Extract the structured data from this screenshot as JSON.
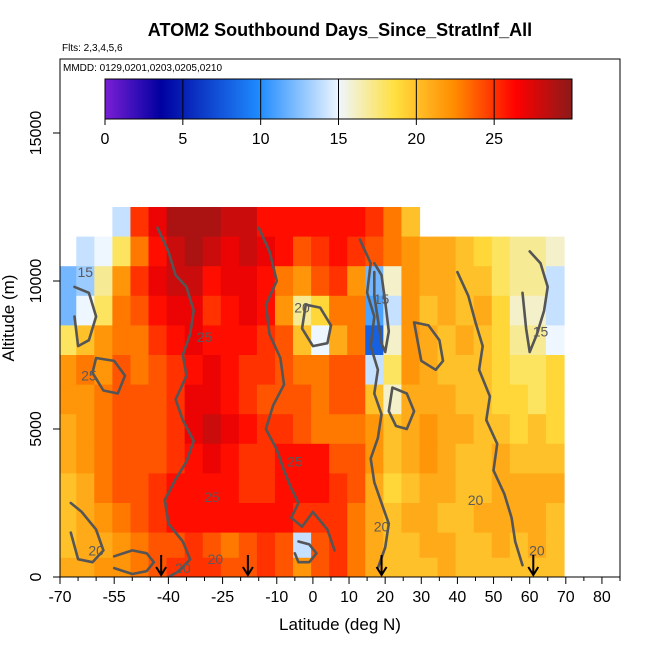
{
  "chart_data": {
    "type": "heatmap",
    "title": "ATOM2 Southbound Days_Since_StratInf_All",
    "subtitle_flights": "Flts: 2,3,4,5,6",
    "subtitle_dates": "MMDD: 0129,0201,0203,0205,0210",
    "xlabel": "Latitude (deg N)",
    "ylabel": "Altitude (m)",
    "xlim": [
      -70,
      85
    ],
    "ylim": [
      0,
      17500
    ],
    "x_ticks": [
      -70,
      -55,
      -40,
      -25,
      -10,
      0,
      10,
      20,
      30,
      40,
      50,
      60,
      70,
      80
    ],
    "y_ticks": [
      0,
      5000,
      10000,
      15000
    ],
    "colorbar": {
      "range": [
        0,
        30
      ],
      "ticks": [
        0,
        5,
        10,
        15,
        20,
        25
      ],
      "colors": [
        "#7a1fd6",
        "#0000a0",
        "#1e8bff",
        "#eef6ff",
        "#ffe040",
        "#ff8a00",
        "#ff0000",
        "#8b1a1a"
      ]
    },
    "contour_levels": [
      15,
      20,
      25
    ],
    "contour_color": "#555555",
    "grid": false,
    "arrow_latitudes": [
      -42,
      -18,
      19,
      61
    ],
    "heat_rows": [
      {
        "alt": 12000,
        "lat": [
          -53,
          -48,
          -43,
          -38,
          -33,
          -28,
          -23,
          -18,
          -13,
          -8,
          -3,
          2,
          7,
          12,
          17,
          22,
          27
        ],
        "value": [
          14,
          25,
          27,
          29,
          29,
          29,
          28,
          28,
          26,
          26,
          26,
          26,
          26,
          26,
          25,
          23,
          20
        ]
      },
      {
        "alt": 11000,
        "lat": [
          -63,
          -58,
          -53,
          -48,
          -43,
          -38,
          -33,
          -28,
          -23,
          -18,
          -13,
          -8,
          -3,
          2,
          7,
          12,
          17,
          22,
          27,
          32,
          37,
          42,
          47,
          52,
          57,
          62,
          67
        ],
        "value": [
          14,
          15,
          18,
          23,
          26,
          28,
          29,
          28,
          27,
          28,
          27,
          26,
          24,
          25,
          26,
          25,
          24,
          23,
          22,
          21,
          21,
          20,
          19,
          18,
          17,
          17,
          16
        ]
      },
      {
        "alt": 10000,
        "lat": [
          -68,
          -63,
          -58,
          -53,
          -48,
          -43,
          -38,
          -33,
          -28,
          -23,
          -18,
          -13,
          -8,
          -3,
          2,
          7,
          12,
          17,
          22,
          27,
          32,
          37,
          42,
          47,
          52,
          57,
          62,
          67
        ],
        "value": [
          12,
          13,
          17,
          22,
          25,
          27,
          28,
          28,
          26,
          27,
          27,
          26,
          23,
          22,
          24,
          25,
          22,
          12,
          16,
          22,
          21,
          21,
          20,
          20,
          18,
          17,
          17,
          14
        ]
      },
      {
        "alt": 9000,
        "lat": [
          -68,
          -63,
          -58,
          -53,
          -48,
          -43,
          -38,
          -33,
          -28,
          -23,
          -18,
          -13,
          -8,
          -3,
          2,
          7,
          12,
          17,
          22,
          27,
          32,
          37,
          42,
          47,
          52,
          57,
          62,
          67
        ],
        "value": [
          12,
          15,
          18,
          23,
          24,
          26,
          27,
          27,
          25,
          26,
          27,
          26,
          22,
          17,
          19,
          23,
          23,
          11,
          14,
          22,
          20,
          21,
          20,
          21,
          19,
          16,
          16,
          14
        ]
      },
      {
        "alt": 8000,
        "lat": [
          -68,
          -63,
          -58,
          -53,
          -48,
          -43,
          -38,
          -33,
          -28,
          -23,
          -18,
          -13,
          -8,
          -3,
          2,
          7,
          12,
          17,
          22,
          27,
          32,
          37,
          42,
          47,
          52,
          57,
          62,
          67
        ],
        "value": [
          18,
          20,
          22,
          23,
          23,
          25,
          26,
          27,
          26,
          26,
          26,
          25,
          24,
          20,
          15,
          21,
          23,
          8,
          16,
          22,
          21,
          20,
          21,
          20,
          19,
          17,
          17,
          15
        ]
      },
      {
        "alt": 7000,
        "lat": [
          -68,
          -63,
          -58,
          -53,
          -48,
          -43,
          -38,
          -33,
          -28,
          -23,
          -18,
          -13,
          -8,
          -3,
          2,
          7,
          12,
          17,
          22,
          27,
          32,
          37,
          42,
          47,
          52,
          57,
          62,
          67
        ],
        "value": [
          22,
          23,
          22,
          24,
          23,
          24,
          25,
          26,
          27,
          26,
          25,
          25,
          24,
          23,
          23,
          24,
          24,
          14,
          18,
          22,
          21,
          20,
          20,
          20,
          19,
          18,
          18,
          19
        ]
      },
      {
        "alt": 6000,
        "lat": [
          -68,
          -63,
          -58,
          -53,
          -48,
          -43,
          -38,
          -33,
          -28,
          -23,
          -18,
          -13,
          -8,
          -3,
          2,
          7,
          12,
          17,
          22,
          27,
          32,
          37,
          42,
          47,
          52,
          57,
          62,
          67
        ],
        "value": [
          22,
          22,
          23,
          24,
          24,
          24,
          25,
          27,
          27,
          26,
          25,
          24,
          24,
          24,
          23,
          24,
          24,
          20,
          16,
          21,
          21,
          21,
          20,
          20,
          19,
          19,
          18,
          19
        ]
      },
      {
        "alt": 5000,
        "lat": [
          -68,
          -63,
          -58,
          -53,
          -48,
          -43,
          -38,
          -33,
          -28,
          -23,
          -18,
          -13,
          -8,
          -3,
          2,
          7,
          12,
          17,
          22,
          27,
          32,
          37,
          42,
          47,
          52,
          57,
          62,
          67
        ],
        "value": [
          21,
          22,
          23,
          24,
          24,
          24,
          25,
          27,
          28,
          27,
          26,
          25,
          25,
          24,
          23,
          23,
          23,
          22,
          20,
          21,
          22,
          21,
          21,
          20,
          20,
          19,
          20,
          19
        ]
      },
      {
        "alt": 4000,
        "lat": [
          -68,
          -63,
          -58,
          -53,
          -48,
          -43,
          -38,
          -33,
          -28,
          -23,
          -18,
          -13,
          -8,
          -3,
          2,
          7,
          12,
          17,
          22,
          27,
          32,
          37,
          42,
          47,
          52,
          57,
          62,
          67
        ],
        "value": [
          21,
          22,
          23,
          24,
          24,
          24,
          25,
          26,
          27,
          26,
          25,
          25,
          26,
          26,
          26,
          24,
          24,
          22,
          20,
          21,
          22,
          21,
          20,
          20,
          21,
          20,
          20,
          20
        ]
      },
      {
        "alt": 3000,
        "lat": [
          -68,
          -63,
          -58,
          -53,
          -48,
          -43,
          -38,
          -33,
          -28,
          -23,
          -18,
          -13,
          -8,
          -3,
          2,
          7,
          12,
          17,
          22,
          27,
          32,
          37,
          42,
          47,
          52,
          57,
          62,
          67
        ],
        "value": [
          20,
          21,
          23,
          24,
          24,
          25,
          26,
          26,
          26,
          26,
          25,
          25,
          26,
          26,
          26,
          25,
          24,
          21,
          19,
          20,
          21,
          21,
          20,
          20,
          21,
          21,
          21,
          21
        ]
      },
      {
        "alt": 2000,
        "lat": [
          -68,
          -63,
          -58,
          -53,
          -48,
          -43,
          -38,
          -33,
          -28,
          -23,
          -18,
          -13,
          -8,
          -3,
          2,
          7,
          12,
          17,
          22,
          27,
          32,
          37,
          42,
          47,
          52,
          57,
          62,
          67
        ],
        "value": [
          20,
          21,
          22,
          23,
          24,
          25,
          26,
          26,
          26,
          26,
          26,
          26,
          26,
          25,
          25,
          25,
          23,
          21,
          20,
          21,
          21,
          20,
          20,
          21,
          21,
          21,
          21,
          20
        ]
      },
      {
        "alt": 1000,
        "lat": [
          -68,
          -63,
          -58,
          -53,
          -48,
          -43,
          -38,
          -33,
          -28,
          -23,
          -18,
          -13,
          -8,
          -3,
          2,
          7,
          12,
          17,
          22,
          27,
          32,
          37,
          42,
          47,
          52,
          57,
          62,
          67
        ],
        "value": [
          20,
          21,
          21,
          22,
          23,
          24,
          24,
          25,
          24,
          23,
          24,
          25,
          24,
          14,
          24,
          25,
          23,
          21,
          20,
          20,
          21,
          21,
          20,
          20,
          21,
          20,
          21,
          20
        ]
      },
      {
        "alt": 300,
        "lat": [
          -68,
          -63,
          -58,
          -53,
          -48,
          -43,
          -38,
          -33,
          -28,
          -23,
          -18,
          -13,
          -8,
          -3,
          2,
          7,
          12,
          17,
          22,
          27,
          32,
          37,
          42,
          47,
          52,
          57,
          62,
          67
        ],
        "value": [
          21,
          21,
          22,
          22,
          23,
          24,
          25,
          25,
          25,
          24,
          24,
          25,
          24,
          22,
          24,
          25,
          23,
          21,
          20,
          20,
          20,
          21,
          20,
          20,
          20,
          20,
          20,
          20
        ]
      }
    ],
    "contour_lines": [
      {
        "level": 25,
        "lat": [
          -43,
          -40,
          -38,
          -35,
          -33,
          -34,
          -36,
          -35,
          -38,
          -36,
          -33,
          -35,
          -38,
          -41,
          -40,
          -36,
          -34,
          -37,
          -40
        ],
        "alt": [
          11800,
          11000,
          10200,
          9800,
          9000,
          8200,
          7500,
          6800,
          6000,
          5300,
          4600,
          3900,
          3300,
          2600,
          1800,
          1200,
          600,
          200,
          0
        ]
      },
      {
        "level": 25,
        "lat": [
          -15,
          -12,
          -10,
          -13,
          -12,
          -9,
          -8,
          -11,
          -13,
          -10,
          -8,
          -6,
          -4,
          -6,
          -3,
          0,
          4,
          6
        ],
        "alt": [
          11800,
          11000,
          10000,
          9200,
          8200,
          7400,
          6500,
          5800,
          5000,
          4300,
          3600,
          3000,
          2500,
          2000,
          1700,
          2200,
          1600,
          900
        ]
      },
      {
        "level": 20,
        "lat": [
          13,
          16,
          15,
          17,
          16,
          18,
          17,
          19,
          18,
          16,
          17,
          19,
          21,
          20,
          18
        ],
        "alt": [
          11400,
          10600,
          9600,
          8800,
          7800,
          7000,
          6200,
          5500,
          4700,
          4000,
          3200,
          2500,
          1800,
          1000,
          300
        ]
      },
      {
        "level": 20,
        "lat": [
          40,
          43,
          45,
          47,
          46,
          49,
          48,
          51,
          50,
          53,
          55,
          56,
          58
        ],
        "alt": [
          10300,
          9500,
          8600,
          7800,
          7000,
          6100,
          5300,
          4500,
          3600,
          2800,
          2000,
          1200,
          400
        ]
      },
      {
        "level": 15,
        "lat": [
          60,
          63,
          65,
          64,
          62,
          60,
          59,
          58
        ],
        "alt": [
          11000,
          10600,
          9800,
          9000,
          8200,
          7600,
          8400,
          9600
        ]
      },
      {
        "level": 15,
        "lat": [
          17,
          19,
          20,
          21,
          20,
          19,
          18,
          17,
          17
        ],
        "alt": [
          10600,
          10200,
          9300,
          8300,
          7600,
          7900,
          8700,
          9500,
          10300
        ]
      },
      {
        "level": 15,
        "lat": [
          -66,
          -62,
          -60,
          -62,
          -65,
          -66
        ],
        "alt": [
          9800,
          9600,
          8800,
          8000,
          7800,
          8800
        ]
      },
      {
        "level": 15,
        "lat": [
          -4,
          -1,
          1,
          -1,
          -4,
          -5
        ],
        "alt": [
          1200,
          1100,
          800,
          500,
          500,
          800
        ]
      },
      {
        "level": 20,
        "lat": [
          -67,
          -64,
          -60,
          -58,
          -61,
          -65,
          -67
        ],
        "alt": [
          2500,
          2200,
          1600,
          900,
          500,
          600,
          1500
        ]
      },
      {
        "level": 20,
        "lat": [
          -55,
          -50,
          -46,
          -44,
          -46,
          -50,
          -55
        ],
        "alt": [
          700,
          900,
          800,
          500,
          200,
          100,
          300
        ]
      },
      {
        "level": 20,
        "lat": [
          22,
          26,
          28,
          26,
          23,
          21,
          22
        ],
        "alt": [
          6400,
          6200,
          5600,
          5000,
          5100,
          5600,
          6400
        ]
      },
      {
        "level": 25,
        "lat": [
          -60,
          -55,
          -52,
          -54,
          -58,
          -61,
          -60
        ],
        "alt": [
          7400,
          7300,
          6800,
          6200,
          6300,
          6900,
          7400
        ]
      },
      {
        "level": 20,
        "lat": [
          28,
          32,
          35,
          36,
          34,
          30,
          28
        ],
        "alt": [
          8600,
          8500,
          8000,
          7300,
          7000,
          7300,
          8600
        ]
      },
      {
        "level": 25,
        "lat": [
          -2,
          2,
          5,
          4,
          0,
          -3,
          -2
        ],
        "alt": [
          9200,
          9100,
          8500,
          7900,
          7800,
          8400,
          9200
        ]
      }
    ],
    "contour_labels": [
      {
        "level": 15,
        "lat": -63,
        "alt": 10300,
        "text": "15"
      },
      {
        "level": 20,
        "lat": -3,
        "alt": 9100,
        "text": "20"
      },
      {
        "level": 15,
        "lat": 19,
        "alt": 9400,
        "text": "15"
      },
      {
        "level": 15,
        "lat": 63,
        "alt": 8300,
        "text": "15"
      },
      {
        "level": 25,
        "lat": -30,
        "alt": 8100,
        "text": "25"
      },
      {
        "level": 25,
        "lat": -62,
        "alt": 6800,
        "text": "25"
      },
      {
        "level": 25,
        "lat": -5,
        "alt": 3900,
        "text": "25"
      },
      {
        "level": 25,
        "lat": -28,
        "alt": 2700,
        "text": "25"
      },
      {
        "level": 20,
        "lat": 45,
        "alt": 2600,
        "text": "20"
      },
      {
        "level": 20,
        "lat": 19,
        "alt": 1700,
        "text": "20"
      },
      {
        "level": 20,
        "lat": -60,
        "alt": 900,
        "text": "20"
      },
      {
        "level": 20,
        "lat": -27,
        "alt": 600,
        "text": "20"
      },
      {
        "level": 20,
        "lat": -36,
        "alt": 300,
        "text": "20"
      },
      {
        "level": 20,
        "lat": 62,
        "alt": 900,
        "text": "20"
      }
    ]
  }
}
